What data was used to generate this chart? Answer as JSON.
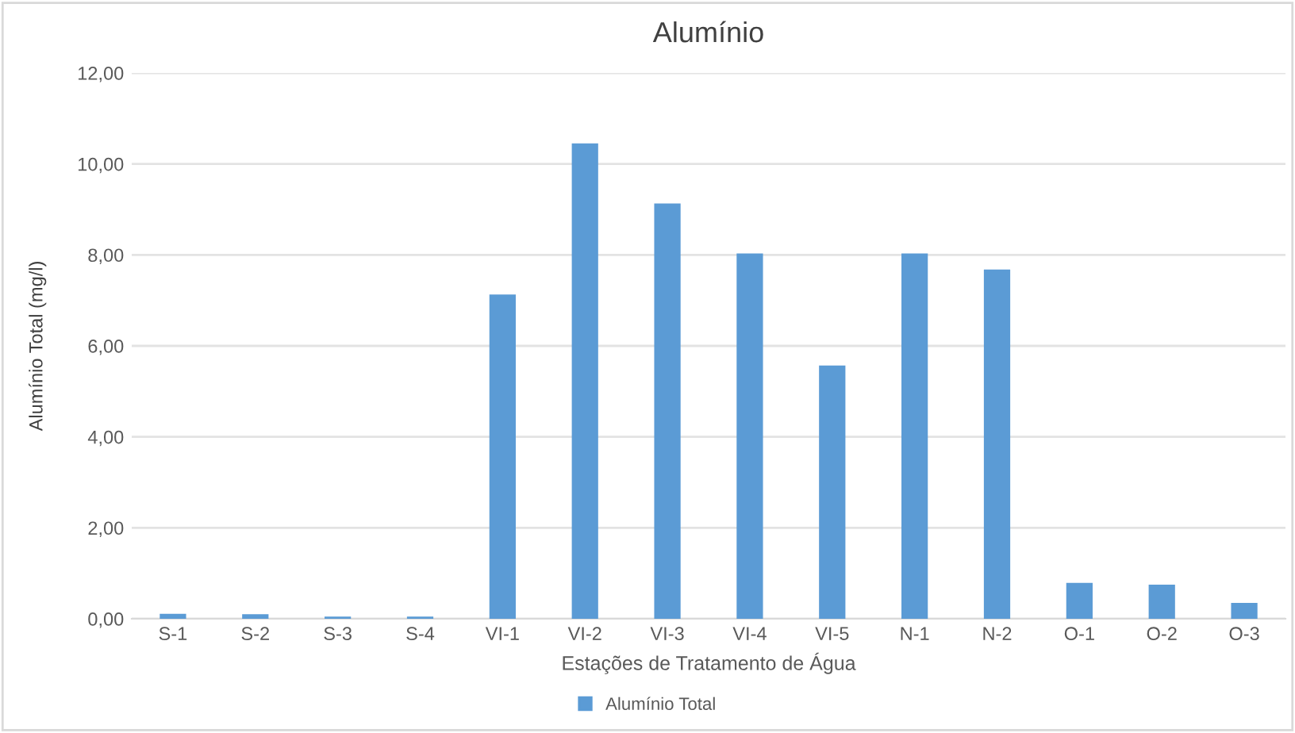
{
  "chart_data": {
    "type": "bar",
    "title": "Alumínio",
    "xlabel": "Estações de Tratamento de Água",
    "ylabel": "Alumínio Total (mg/l)",
    "categories": [
      "S-1",
      "S-2",
      "S-3",
      "S-4",
      "VI-1",
      "VI-2",
      "VI-3",
      "VI-4",
      "VI-5",
      "N-1",
      "N-2",
      "O-1",
      "O-2",
      "O-3"
    ],
    "series": [
      {
        "name": "Alumínio Total",
        "color": "#5b9bd5",
        "values": [
          0.11,
          0.1,
          0.05,
          0.05,
          7.13,
          10.45,
          9.13,
          8.03,
          5.57,
          8.03,
          7.68,
          0.79,
          0.75,
          0.35
        ]
      }
    ],
    "ylim": [
      0,
      12
    ],
    "yticks": [
      {
        "value": 0,
        "label": "0,00"
      },
      {
        "value": 2,
        "label": "2,00"
      },
      {
        "value": 4,
        "label": "4,00"
      },
      {
        "value": 6,
        "label": "6,00"
      },
      {
        "value": 8,
        "label": "8,00"
      },
      {
        "value": 10,
        "label": "10,00"
      },
      {
        "value": 12,
        "label": "12,00"
      }
    ],
    "grid": "y",
    "legend": "bottom"
  }
}
